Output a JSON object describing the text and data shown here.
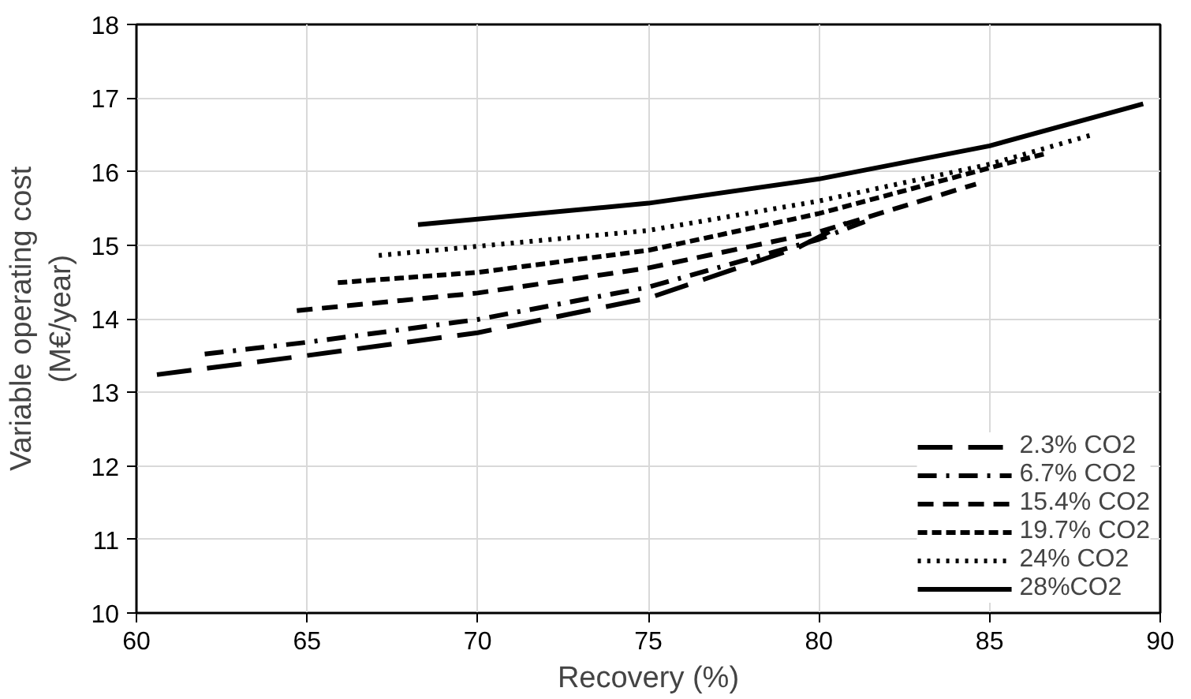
{
  "chart_data": {
    "type": "line",
    "xlabel": "Recovery (%)",
    "ylabel": "Variable operating cost\n(M€/year)",
    "xlim": [
      60,
      90
    ],
    "xticks": [
      60,
      65,
      70,
      75,
      80,
      85,
      90
    ],
    "ylim": [
      10,
      18
    ],
    "yticks": [
      10,
      11,
      12,
      13,
      14,
      15,
      16,
      17,
      18
    ],
    "grid": true,
    "legend": "bottom right",
    "series": [
      {
        "name": "2.3% CO2",
        "color": "#000000",
        "line_style": "longdash",
        "x": [
          60.6,
          65,
          70,
          75,
          79.4,
          80.8
        ],
        "values": [
          13.24,
          13.5,
          13.81,
          14.28,
          14.97,
          15.3
        ]
      },
      {
        "name": "6.7% CO2",
        "color": "#000000",
        "line_style": "dashdot",
        "x": [
          62.0,
          65,
          70,
          75,
          80,
          81.4
        ],
        "values": [
          13.52,
          13.68,
          13.99,
          14.43,
          15.08,
          15.33
        ]
      },
      {
        "name": "15.4% CO2",
        "color": "#000000",
        "line_style": "dashed",
        "x": [
          64.7,
          70,
          75,
          80,
          84.6
        ],
        "values": [
          14.11,
          14.35,
          14.69,
          15.18,
          15.83
        ]
      },
      {
        "name": "19.7% CO2",
        "color": "#000000",
        "line_style": "shortdash",
        "x": [
          65.9,
          70,
          75,
          80,
          85,
          86.6
        ],
        "values": [
          14.49,
          14.63,
          14.93,
          15.43,
          16.05,
          16.24
        ]
      },
      {
        "name": "24% CO2",
        "color": "#000000",
        "line_style": "dotted",
        "x": [
          67.1,
          75,
          80,
          85,
          88.0
        ],
        "values": [
          14.86,
          15.2,
          15.6,
          16.1,
          16.5
        ]
      },
      {
        "name": "28%CO2",
        "color": "#000000",
        "line_style": "solid",
        "x": [
          68.25,
          75,
          80,
          85,
          89.5
        ],
        "values": [
          15.28,
          15.57,
          15.9,
          16.35,
          16.92
        ]
      }
    ]
  }
}
